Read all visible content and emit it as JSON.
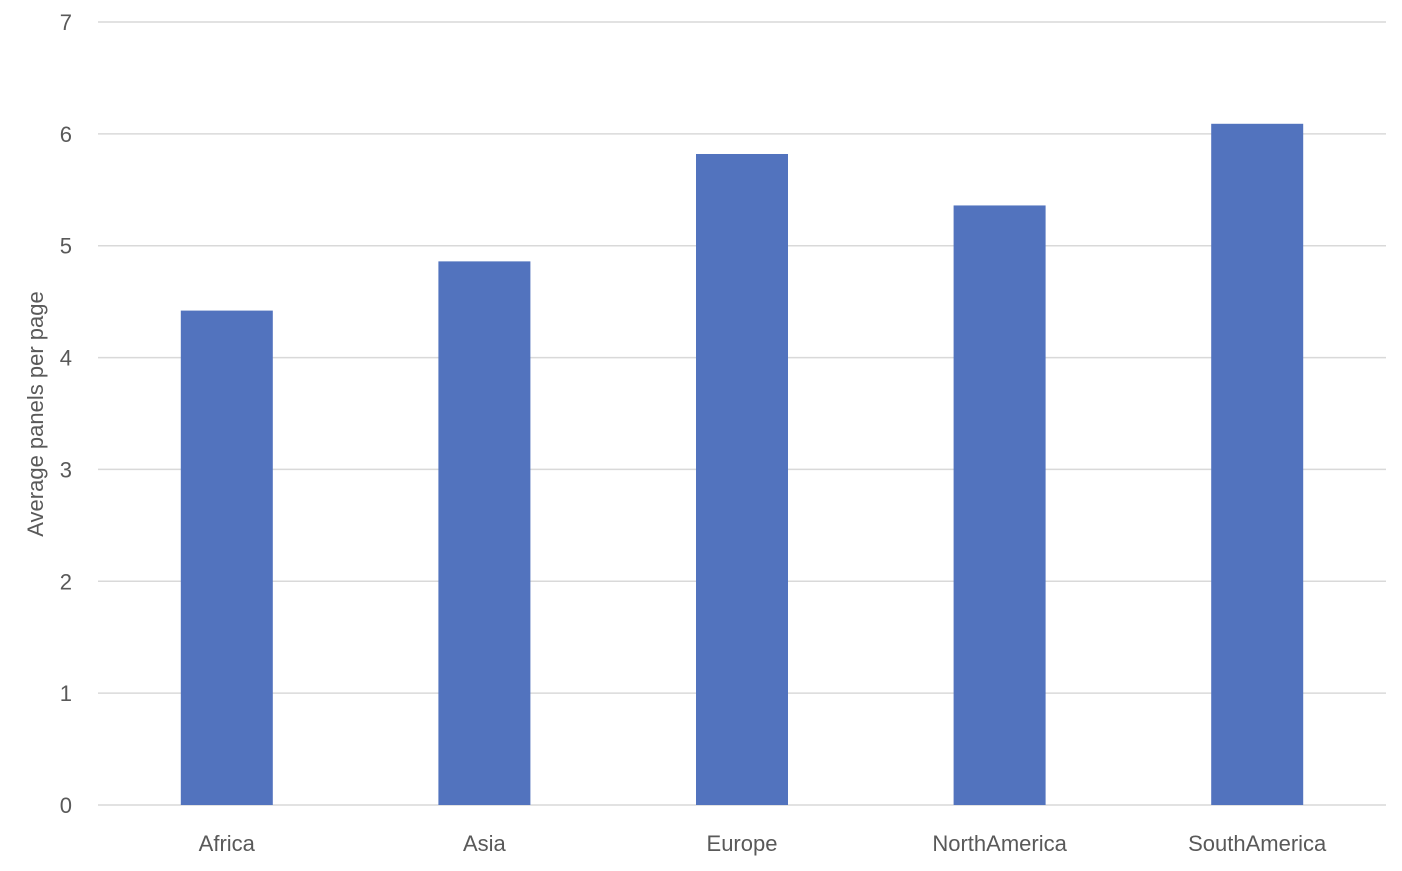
{
  "chart_data": {
    "type": "bar",
    "title": "",
    "xlabel": "",
    "ylabel": "Average panels per page",
    "categories": [
      "Africa",
      "Asia",
      "Europe",
      "NorthAmerica",
      "SouthAmerica"
    ],
    "values": [
      4.42,
      4.86,
      5.82,
      5.36,
      6.09
    ],
    "ylim": [
      0,
      7
    ],
    "yticks": [
      0,
      1,
      2,
      3,
      4,
      5,
      6,
      7
    ],
    "grid": true,
    "legend": "none",
    "colors": {
      "bar": "#5273BE",
      "grid": "#D9D9D9",
      "text": "#595959"
    }
  }
}
